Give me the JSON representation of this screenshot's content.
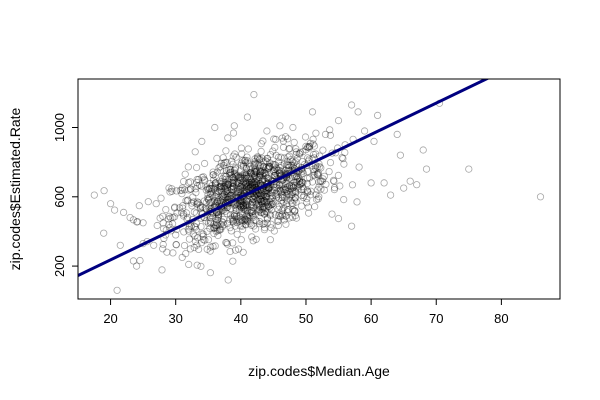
{
  "chart_data": {
    "type": "scatter",
    "title": "",
    "xlabel": "zip.codes$Median.Age",
    "ylabel": "zip.codes$Estimated.Rate",
    "xlim": [
      15,
      89
    ],
    "ylim": [
      10,
      1280
    ],
    "x_ticks": [
      20,
      30,
      40,
      50,
      60,
      70,
      80
    ],
    "y_ticks": [
      200,
      600,
      1000
    ],
    "x_tick_labels": [
      "20",
      "30",
      "40",
      "50",
      "60",
      "70",
      "80"
    ],
    "y_tick_labels": [
      "200",
      "600",
      "1000"
    ],
    "grid": false,
    "legend": "none",
    "point_style": "hollow-circle",
    "point_color": "#000000",
    "point_alpha": 0.35,
    "regression_line": {
      "color": "#000080",
      "intercept": -126,
      "slope": 18.1,
      "x_range": [
        15,
        89
      ]
    },
    "points_summary": {
      "n": 1200,
      "core_x_mean": 41.5,
      "core_x_sd": 6.0,
      "core_y_mean": 620,
      "core_y_sd": 115
    },
    "outliers": [
      {
        "x": 17.5,
        "y": 610
      },
      {
        "x": 19,
        "y": 635
      },
      {
        "x": 20,
        "y": 560
      },
      {
        "x": 21,
        "y": 60
      },
      {
        "x": 21.5,
        "y": 320
      },
      {
        "x": 22,
        "y": 510
      },
      {
        "x": 23,
        "y": 480
      },
      {
        "x": 23.5,
        "y": 230
      },
      {
        "x": 24,
        "y": 200
      },
      {
        "x": 25,
        "y": 450
      },
      {
        "x": 25,
        "y": 330
      },
      {
        "x": 27,
        "y": 560
      },
      {
        "x": 28,
        "y": 300
      },
      {
        "x": 30,
        "y": 380
      },
      {
        "x": 31,
        "y": 250
      },
      {
        "x": 32,
        "y": 210
      },
      {
        "x": 33,
        "y": 860
      },
      {
        "x": 34,
        "y": 920
      },
      {
        "x": 36,
        "y": 1000
      },
      {
        "x": 38,
        "y": 940
      },
      {
        "x": 39,
        "y": 1010
      },
      {
        "x": 41,
        "y": 1060
      },
      {
        "x": 42,
        "y": 1190
      },
      {
        "x": 44,
        "y": 980
      },
      {
        "x": 46,
        "y": 1010
      },
      {
        "x": 48,
        "y": 1000
      },
      {
        "x": 51,
        "y": 1090
      },
      {
        "x": 53,
        "y": 960
      },
      {
        "x": 55,
        "y": 1040
      },
      {
        "x": 57,
        "y": 1130
      },
      {
        "x": 58,
        "y": 1090
      },
      {
        "x": 59,
        "y": 980
      },
      {
        "x": 60,
        "y": 680
      },
      {
        "x": 61,
        "y": 1070
      },
      {
        "x": 62,
        "y": 680
      },
      {
        "x": 63,
        "y": 610
      },
      {
        "x": 64,
        "y": 960
      },
      {
        "x": 64.5,
        "y": 840
      },
      {
        "x": 65,
        "y": 650
      },
      {
        "x": 66,
        "y": 690
      },
      {
        "x": 67,
        "y": 670
      },
      {
        "x": 68,
        "y": 870
      },
      {
        "x": 68.5,
        "y": 760
      },
      {
        "x": 70.5,
        "y": 1140
      },
      {
        "x": 75,
        "y": 760
      },
      {
        "x": 86,
        "y": 600
      },
      {
        "x": 57,
        "y": 430
      },
      {
        "x": 54,
        "y": 500
      },
      {
        "x": 52,
        "y": 790
      },
      {
        "x": 56,
        "y": 900
      }
    ]
  }
}
